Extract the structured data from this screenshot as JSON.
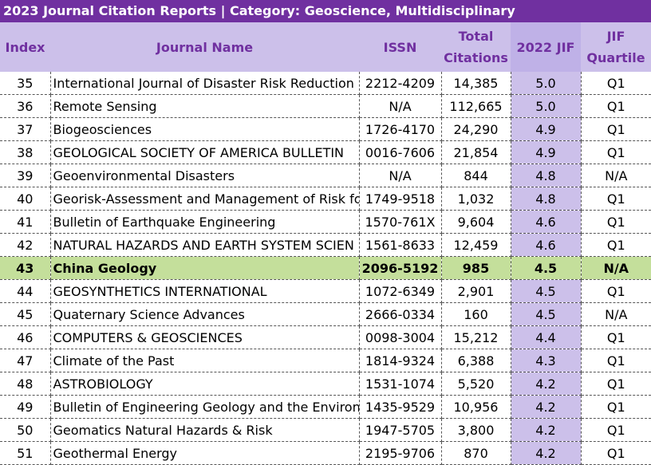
{
  "title": "2023 Journal Citation Reports | Category: Geoscience, Multidisciplinary",
  "colors": {
    "title_bar": "#7030a0",
    "header_bg": "#ccc0ea",
    "header_text": "#7030a0",
    "jif_column_bg": "#ccc0ea",
    "highlight_row": "#c4df9b"
  },
  "headers": {
    "index": "Index",
    "journal_name": "Journal Name",
    "issn": "ISSN",
    "total_citations_line1": "Total",
    "total_citations_line2": "Citations",
    "jif": "2022 JIF",
    "quartile_line1": "JIF",
    "quartile_line2": "Quartile"
  },
  "highlighted_index": "43",
  "rows": [
    {
      "index": "35",
      "name": "International Journal of Disaster Risk Reduction",
      "issn": "2212-4209",
      "citations": "14,385",
      "jif": "5.0",
      "quartile": "Q1"
    },
    {
      "index": "36",
      "name": "Remote Sensing",
      "issn": "N/A",
      "citations": "112,665",
      "jif": "5.0",
      "quartile": "Q1"
    },
    {
      "index": "37",
      "name": "Biogeosciences",
      "issn": "1726-4170",
      "citations": "24,290",
      "jif": "4.9",
      "quartile": "Q1"
    },
    {
      "index": "38",
      "name": "GEOLOGICAL SOCIETY OF AMERICA BULLETIN",
      "issn": "0016-7606",
      "citations": "21,854",
      "jif": "4.9",
      "quartile": "Q1"
    },
    {
      "index": "39",
      "name": "Geoenvironmental Disasters",
      "issn": "N/A",
      "citations": "844",
      "jif": "4.8",
      "quartile": "N/A"
    },
    {
      "index": "40",
      "name": "Georisk-Assessment and Management of Risk fo",
      "issn": "1749-9518",
      "citations": "1,032",
      "jif": "4.8",
      "quartile": "Q1"
    },
    {
      "index": "41",
      "name": "Bulletin of Earthquake Engineering",
      "issn": "1570-761X",
      "citations": "9,604",
      "jif": "4.6",
      "quartile": "Q1"
    },
    {
      "index": "42",
      "name": "NATURAL HAZARDS AND EARTH SYSTEM SCIEN",
      "issn": "1561-8633",
      "citations": "12,459",
      "jif": "4.6",
      "quartile": "Q1"
    },
    {
      "index": "43",
      "name": "China Geology",
      "issn": "2096-5192",
      "citations": "985",
      "jif": "4.5",
      "quartile": "N/A"
    },
    {
      "index": "44",
      "name": "GEOSYNTHETICS INTERNATIONAL",
      "issn": "1072-6349",
      "citations": "2,901",
      "jif": "4.5",
      "quartile": "Q1"
    },
    {
      "index": "45",
      "name": "Quaternary Science Advances",
      "issn": "2666-0334",
      "citations": "160",
      "jif": "4.5",
      "quartile": "N/A"
    },
    {
      "index": "46",
      "name": "COMPUTERS & GEOSCIENCES",
      "issn": "0098-3004",
      "citations": "15,212",
      "jif": "4.4",
      "quartile": "Q1"
    },
    {
      "index": "47",
      "name": "Climate of the Past",
      "issn": "1814-9324",
      "citations": "6,388",
      "jif": "4.3",
      "quartile": "Q1"
    },
    {
      "index": "48",
      "name": "ASTROBIOLOGY",
      "issn": "1531-1074",
      "citations": "5,520",
      "jif": "4.2",
      "quartile": "Q1"
    },
    {
      "index": "49",
      "name": "Bulletin of Engineering Geology and the Environr",
      "issn": "1435-9529",
      "citations": "10,956",
      "jif": "4.2",
      "quartile": "Q1"
    },
    {
      "index": "50",
      "name": "Geomatics Natural Hazards & Risk",
      "issn": "1947-5705",
      "citations": "3,800",
      "jif": "4.2",
      "quartile": "Q1"
    },
    {
      "index": "51",
      "name": "Geothermal Energy",
      "issn": "2195-9706",
      "citations": "870",
      "jif": "4.2",
      "quartile": "Q1"
    }
  ]
}
